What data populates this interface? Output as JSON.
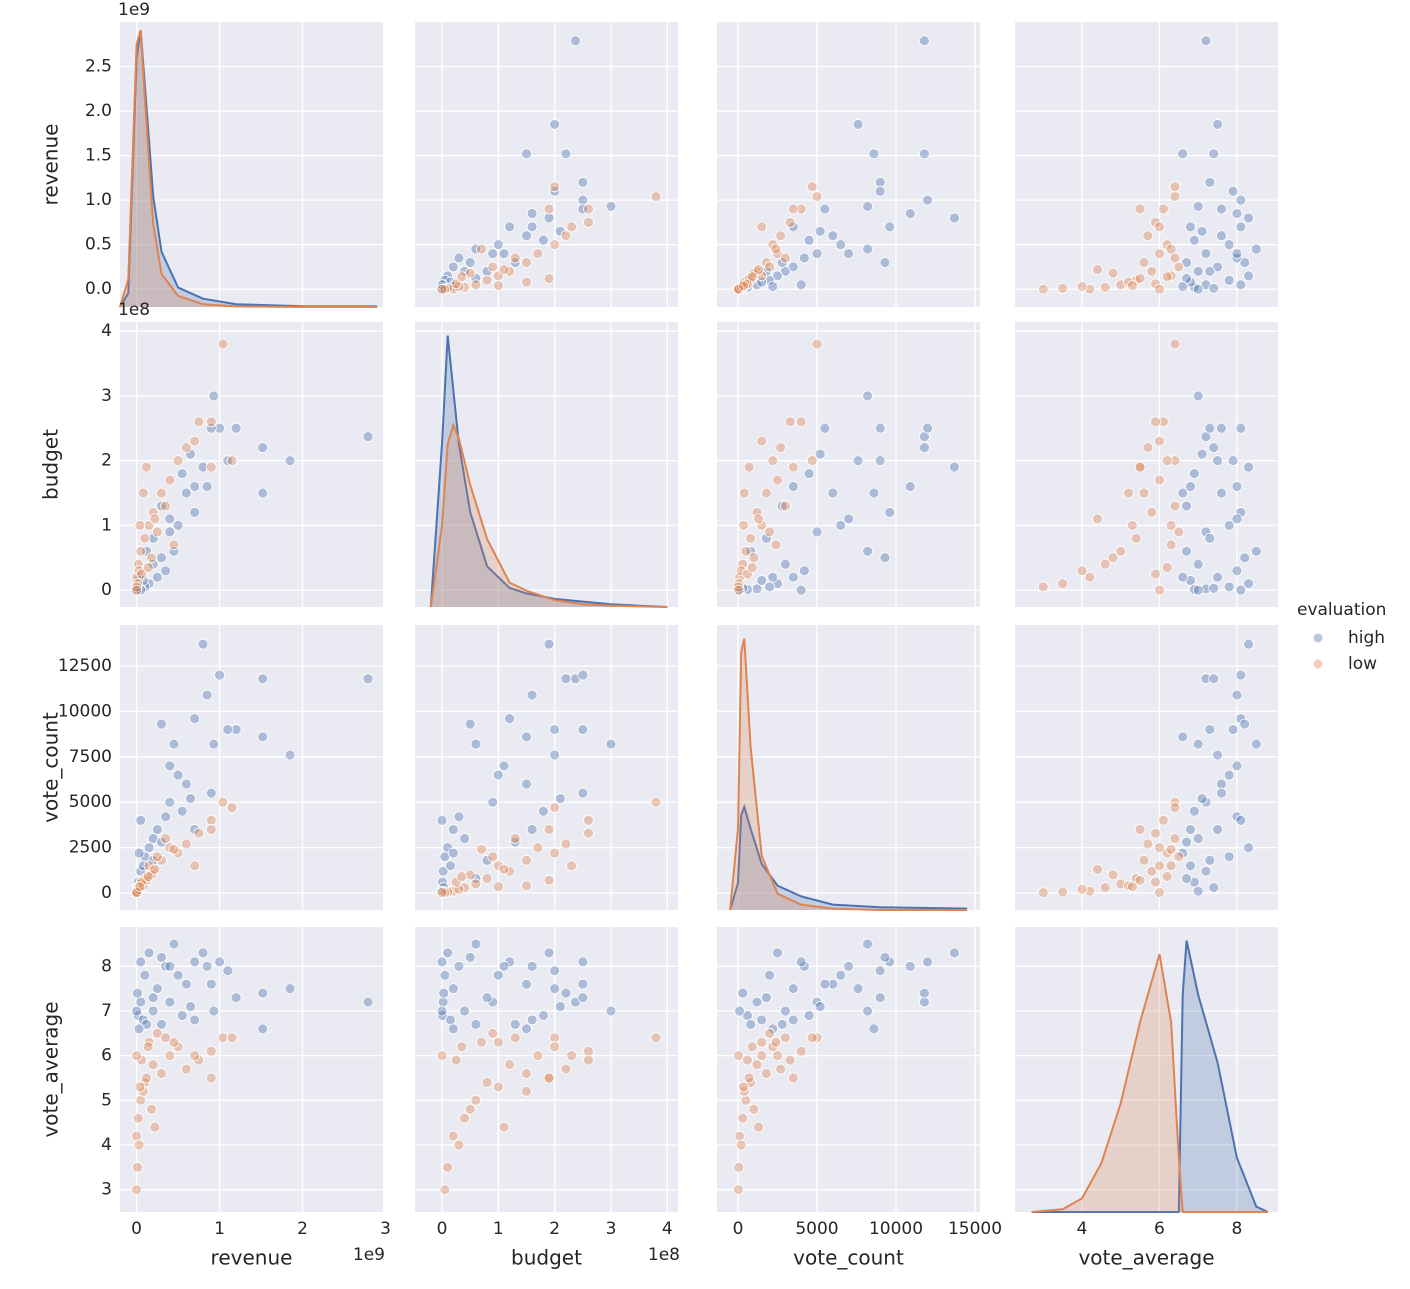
{
  "chart_data": {
    "type": "pairplot",
    "variables": [
      "revenue",
      "budget",
      "vote_count",
      "vote_average"
    ],
    "legend_title": "evaluation",
    "legend_position": "right",
    "grid": true,
    "axes": [
      {
        "xlim": [
          -200000000,
          2970000000
        ],
        "ylim": [
          -200000000,
          3000000000
        ],
        "offset_label": "1e9",
        "xticks": [
          0,
          {
            "value": 1000000000,
            "label": "1"
          },
          {
            "value": 2000000000,
            "label": "2"
          },
          {
            "value": 3000000000,
            "label": "3"
          }
        ],
        "yticks": [
          {
            "value": 0,
            "label": "0.0"
          },
          {
            "value": 500000000,
            "label": "0.5"
          },
          {
            "value": 1000000000,
            "label": "1.0"
          },
          {
            "value": 1500000000,
            "label": "1.5"
          },
          {
            "value": 2000000000,
            "label": "2.0"
          },
          {
            "value": 2500000000,
            "label": "2.5"
          }
        ]
      },
      {
        "xlim": [
          -48000000,
          419000000
        ],
        "ylim": [
          -26000000,
          414000000
        ],
        "offset_label": "1e8",
        "xticks": [
          0,
          {
            "value": 100000000,
            "label": "1"
          },
          {
            "value": 200000000,
            "label": "2"
          },
          {
            "value": 300000000,
            "label": "3"
          },
          {
            "value": 400000000,
            "label": "4"
          }
        ],
        "yticks": [
          0,
          {
            "value": 100000000,
            "label": "1"
          },
          {
            "value": 200000000,
            "label": "2"
          },
          {
            "value": 300000000,
            "label": "3"
          },
          {
            "value": 400000000,
            "label": "4"
          }
        ]
      },
      {
        "xlim": [
          -1329,
          15316
        ],
        "ylim": [
          -936,
          14757
        ],
        "xticks": [
          0,
          5000,
          10000,
          15000
        ],
        "yticks": [
          0,
          2500,
          5000,
          7500,
          10000,
          12500
        ]
      },
      {
        "xlim": [
          2.27,
          9.06
        ],
        "ylim": [
          2.5,
          8.88
        ],
        "xticks": [
          4,
          6,
          8
        ],
        "yticks": [
          3,
          4,
          5,
          6,
          7,
          8
        ]
      }
    ],
    "series": [
      {
        "name": "high",
        "color": "#4c72b0",
        "values": [
          [
            2790000000.0,
            237000000.0,
            11800,
            7.2
          ],
          [
            1850000000.0,
            200000000.0,
            7600,
            7.5
          ],
          [
            1520000000.0,
            220000000.0,
            11800,
            7.4
          ],
          [
            1520000000.0,
            150000000.0,
            8600,
            6.6
          ],
          [
            1200000000.0,
            250000000.0,
            9000,
            7.3
          ],
          [
            1000000000.0,
            250000000.0,
            12000,
            8.1
          ],
          [
            1100000000.0,
            200000000.0,
            9000,
            7.9
          ],
          [
            930000000.0,
            300000000.0,
            8200,
            7.0
          ],
          [
            800000000.0,
            190000000.0,
            13700,
            8.3
          ],
          [
            850000000.0,
            160000000.0,
            10900,
            8.0
          ],
          [
            700000000.0,
            120000000.0,
            9600,
            8.1
          ],
          [
            600000000.0,
            150000000.0,
            6000,
            7.6
          ],
          [
            500000000.0,
            100000000.0,
            6500,
            7.8
          ],
          [
            450000000.0,
            60000000.0,
            8200,
            8.5
          ],
          [
            300000000.0,
            50000000.0,
            9300,
            8.2
          ],
          [
            400000000.0,
            90000000.0,
            5000,
            7.2
          ],
          [
            350000000.0,
            30000000.0,
            4200,
            8.0
          ],
          [
            250000000.0,
            20000000.0,
            3500,
            7.5
          ],
          [
            200000000.0,
            40000000.0,
            3000,
            7.0
          ],
          [
            150000000.0,
            10000000.0,
            2500,
            8.3
          ],
          [
            100000000.0,
            5000000.0,
            2000,
            7.8
          ],
          [
            50000000.0,
            2000000.0,
            1200,
            7.2
          ],
          [
            20000000.0,
            1000000.0,
            600,
            6.9
          ],
          [
            10000000.0,
            3000000.0,
            300,
            7.4
          ],
          [
            80000000.0,
            15000000.0,
            1500,
            6.8
          ],
          [
            300000000.0,
            130000000.0,
            2800,
            6.7
          ],
          [
            550000000.0,
            180000000.0,
            4500,
            6.9
          ],
          [
            650000000.0,
            210000000.0,
            5200,
            7.1
          ],
          [
            120000000.0,
            60000000.0,
            800,
            6.7
          ],
          [
            200000000.0,
            80000000.0,
            1800,
            7.3
          ],
          [
            0,
            0,
            100,
            7.0
          ],
          [
            400000000.0,
            110000000.0,
            7000,
            8.0
          ],
          [
            900000000.0,
            250000000.0,
            5500,
            7.6
          ],
          [
            50000000.0,
            0,
            4000,
            8.1
          ],
          [
            30000000.0,
            20000000.0,
            2200,
            6.6
          ],
          [
            700000000.0,
            160000000.0,
            3500,
            6.8
          ]
        ]
      },
      {
        "name": "low",
        "color": "#dd8452",
        "values": [
          [
            1040000000.0,
            380000000.0,
            5000,
            6.4
          ],
          [
            1150000000.0,
            200000000.0,
            4700,
            6.4
          ],
          [
            900000000.0,
            260000000.0,
            4000,
            6.1
          ],
          [
            750000000.0,
            260000000.0,
            3300,
            5.9
          ],
          [
            600000000.0,
            220000000.0,
            2700,
            5.7
          ],
          [
            500000000.0,
            200000000.0,
            2200,
            6.2
          ],
          [
            400000000.0,
            170000000.0,
            2500,
            6.0
          ],
          [
            300000000.0,
            150000000.0,
            1800,
            5.6
          ],
          [
            200000000.0,
            120000000.0,
            1200,
            5.8
          ],
          [
            150000000.0,
            100000000.0,
            1500,
            6.3
          ],
          [
            100000000.0,
            80000000.0,
            800,
            5.4
          ],
          [
            50000000.0,
            60000000.0,
            500,
            5.0
          ],
          [
            20000000.0,
            40000000.0,
            300,
            4.6
          ],
          [
            0,
            20000000.0,
            100,
            4.2
          ],
          [
            10000000.0,
            10000000.0,
            50,
            3.5
          ],
          [
            0,
            5000000.0,
            20,
            3.0
          ],
          [
            30000000.0,
            30000000.0,
            200,
            4.0
          ],
          [
            80000000.0,
            150000000.0,
            400,
            5.2
          ],
          [
            120000000.0,
            190000000.0,
            700,
            5.5
          ],
          [
            250000000.0,
            90000000.0,
            2000,
            6.5
          ],
          [
            350000000.0,
            130000000.0,
            3000,
            6.4
          ],
          [
            450000000.0,
            70000000.0,
            2400,
            6.3
          ],
          [
            180000000.0,
            50000000.0,
            1000,
            4.8
          ],
          [
            60000000.0,
            25000000.0,
            600,
            5.9
          ],
          [
            0,
            0,
            30,
            6.0
          ],
          [
            220000000.0,
            110000000.0,
            1300,
            4.4
          ],
          [
            700000000.0,
            230000000.0,
            1500,
            6.0
          ],
          [
            900000000.0,
            190000000.0,
            3500,
            5.5
          ],
          [
            140000000.0,
            35000000.0,
            900,
            6.2
          ],
          [
            40000000.0,
            100000000.0,
            350,
            5.3
          ]
        ]
      }
    ],
    "diagonals": [
      {
        "ylim": [
          0,
          1.03
        ],
        "x": [
          -200000000.0,
          -100000000.0,
          0,
          50000000.0,
          100000000.0,
          200000000.0,
          300000000.0,
          500000000.0,
          800000000.0,
          1200000000.0,
          2000000000.0,
          2900000000.0
        ],
        "series": [
          [
            0,
            0.05,
            0.9,
            1.0,
            0.8,
            0.4,
            0.2,
            0.07,
            0.03,
            0.01,
            0.003,
            0.002
          ],
          [
            0,
            0.1,
            0.95,
            1.0,
            0.75,
            0.3,
            0.12,
            0.04,
            0.01,
            0.002,
            0,
            0
          ]
        ]
      },
      {
        "ylim": [
          0,
          1.05
        ],
        "x": [
          -20000000.0,
          0,
          10000000.0,
          20000000.0,
          30000000.0,
          50000000.0,
          80000000.0,
          120000000.0,
          150000000.0,
          200000000.0,
          250000000.0,
          300000000.0,
          400000000.0
        ],
        "series": [
          [
            0,
            0.6,
            1.0,
            0.8,
            0.6,
            0.35,
            0.15,
            0.07,
            0.05,
            0.03,
            0.02,
            0.01,
            0
          ],
          [
            0,
            0.3,
            0.6,
            0.67,
            0.62,
            0.45,
            0.25,
            0.09,
            0.06,
            0.025,
            0.01,
            0.005,
            0
          ]
        ]
      },
      {
        "ylim": [
          0,
          1.05
        ],
        "x": [
          -500,
          0,
          200,
          400,
          800,
          1500,
          2500,
          4000,
          6000,
          9000,
          14500
        ],
        "series": [
          [
            0,
            0.1,
            0.35,
            0.38,
            0.3,
            0.17,
            0.09,
            0.05,
            0.02,
            0.01,
            0.005
          ],
          [
            0,
            0.3,
            0.95,
            1.0,
            0.6,
            0.2,
            0.06,
            0.02,
            0.005,
            0,
            0
          ]
        ]
      },
      {
        "ylim": [
          0,
          1.05
        ],
        "x": [
          2.7,
          3.5,
          4,
          4.5,
          5,
          5.5,
          6,
          6.3,
          6.5,
          6.6,
          6.7,
          7,
          7.5,
          8,
          8.5,
          8.8
        ],
        "series": [
          [
            0,
            0,
            0,
            0,
            0,
            0,
            0,
            0,
            0,
            0.8,
            1.0,
            0.8,
            0.55,
            0.2,
            0.02,
            0
          ],
          [
            0,
            0.01,
            0.05,
            0.18,
            0.4,
            0.7,
            0.95,
            0.7,
            0.2,
            0,
            0,
            0,
            0,
            0,
            0,
            0
          ]
        ]
      }
    ]
  }
}
